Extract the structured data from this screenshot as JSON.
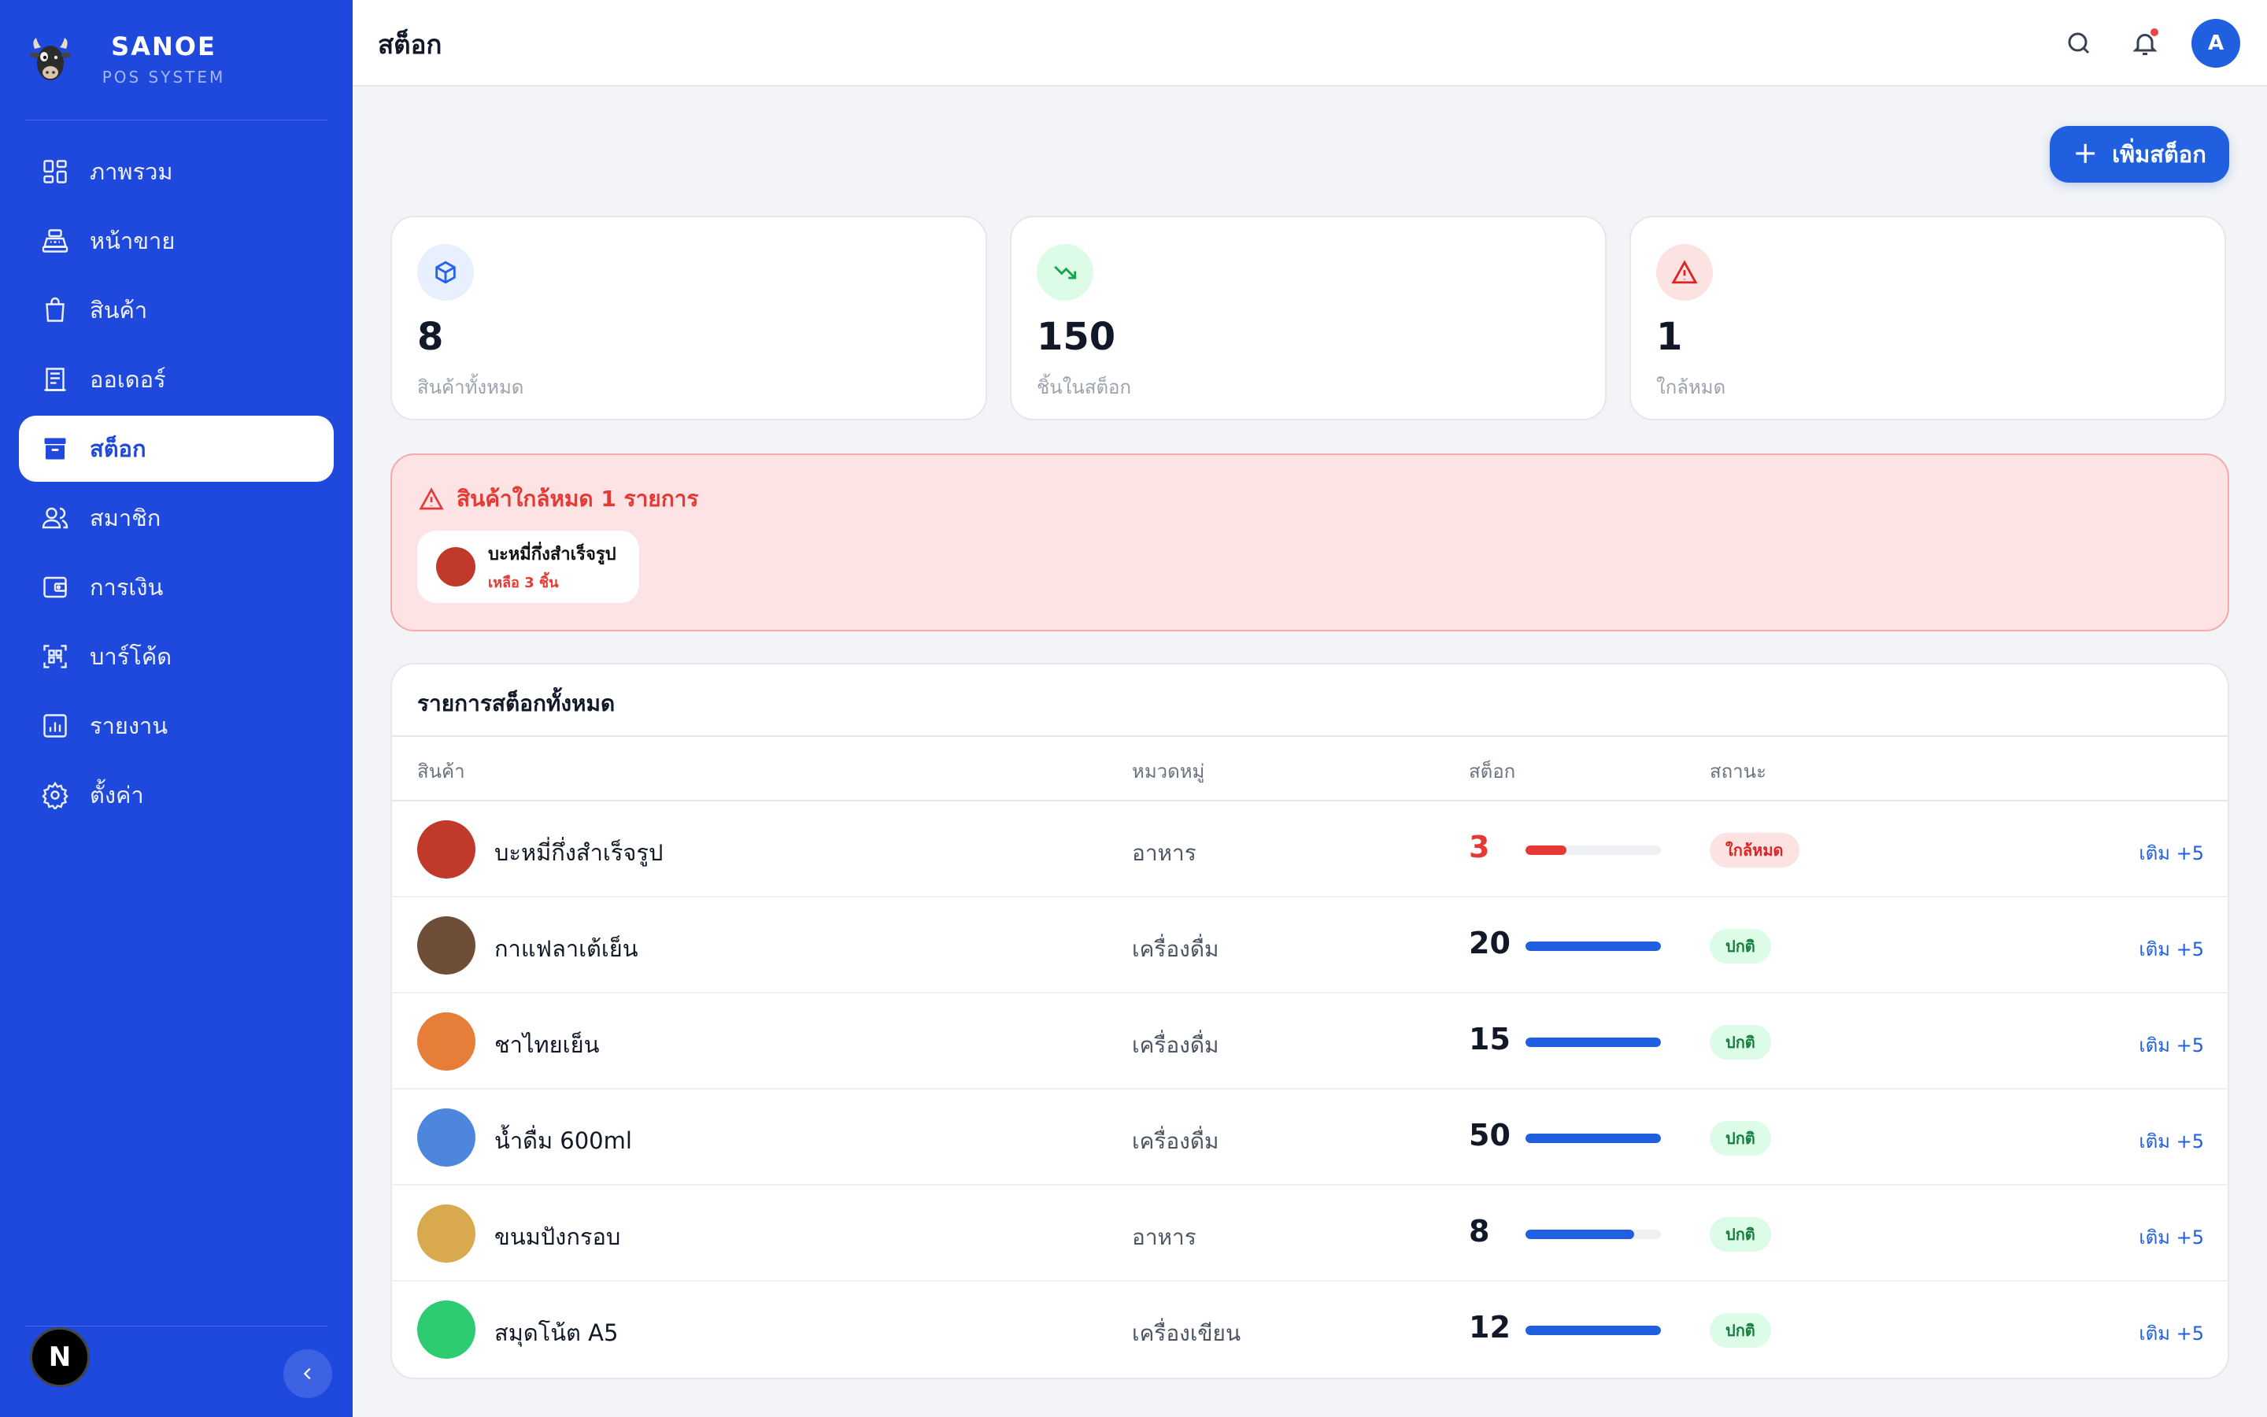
{
  "brand": {
    "name": "SANOE",
    "subtitle": "POS SYSTEM"
  },
  "sidebar": {
    "items": [
      {
        "label": "ภาพรวม",
        "icon": "dashboard-icon",
        "active": false
      },
      {
        "label": "หน้าขาย",
        "icon": "cash-register-icon",
        "active": false
      },
      {
        "label": "สินค้า",
        "icon": "shopping-bag-icon",
        "active": false
      },
      {
        "label": "ออเดอร์",
        "icon": "receipt-icon",
        "active": false
      },
      {
        "label": "สต็อก",
        "icon": "archive-box-icon",
        "active": true
      },
      {
        "label": "สมาชิก",
        "icon": "users-icon",
        "active": false
      },
      {
        "label": "การเงิน",
        "icon": "wallet-icon",
        "active": false
      },
      {
        "label": "บาร์โค้ด",
        "icon": "qr-code-icon",
        "active": false
      },
      {
        "label": "รายงาน",
        "icon": "bar-chart-icon",
        "active": false
      },
      {
        "label": "ตั้งค่า",
        "icon": "gear-icon",
        "active": false
      }
    ],
    "footer_badge": "N"
  },
  "header": {
    "title": "สต็อก",
    "avatar_initial": "A"
  },
  "toolbar": {
    "add_stock_label": "เพิ่มสต็อก"
  },
  "stats": [
    {
      "value": "8",
      "label": "สินค้าทั้งหมด",
      "icon": "package-icon",
      "color": "#2563eb"
    },
    {
      "value": "150",
      "label": "ชิ้นในสต็อก",
      "icon": "trending-down-icon",
      "color": "#16a34a"
    },
    {
      "value": "1",
      "label": "ใกล้หมด",
      "icon": "warning-icon",
      "color": "#dc2626"
    }
  ],
  "alert": {
    "title": "สินค้าใกล้หมด 1 รายการ",
    "item_name": "บะหมี่กึ่งสำเร็จรูป",
    "item_remaining": "เหลือ 3 ชิ้น",
    "item_color": "#c0392b"
  },
  "table": {
    "title": "รายการสต็อกทั้งหมด",
    "columns": [
      "สินค้า",
      "หมวดหมู่",
      "สต็อก",
      "สถานะ"
    ],
    "rows": [
      {
        "name": "บะหมี่กึ่งสำเร็จรูป",
        "category": "อาหาร",
        "qty": "3",
        "level": 0.3,
        "status": "ใกล้หมด",
        "low": true,
        "color": "#c0392b",
        "action": "เติม +5"
      },
      {
        "name": "กาแฟลาเต้เย็น",
        "category": "เครื่องดื่ม",
        "qty": "20",
        "level": 1.0,
        "status": "ปกติ",
        "low": false,
        "color": "#6f4e37",
        "action": "เติม +5"
      },
      {
        "name": "ชาไทยเย็น",
        "category": "เครื่องดื่ม",
        "qty": "15",
        "level": 1.0,
        "status": "ปกติ",
        "low": false,
        "color": "#e67e3a",
        "action": "เติม +5"
      },
      {
        "name": "น้ำดื่ม 600ml",
        "category": "เครื่องดื่ม",
        "qty": "50",
        "level": 1.0,
        "status": "ปกติ",
        "low": false,
        "color": "#4f86dd",
        "action": "เติม +5"
      },
      {
        "name": "ขนมปังกรอบ",
        "category": "อาหาร",
        "qty": "8",
        "level": 0.8,
        "status": "ปกติ",
        "low": false,
        "color": "#d9a94f",
        "action": "เติม +5"
      },
      {
        "name": "สมุดโน้ต A5",
        "category": "เครื่องเขียน",
        "qty": "12",
        "level": 1.0,
        "status": "ปกติ",
        "low": false,
        "color": "#2ecc71",
        "action": "เติม +5"
      }
    ]
  }
}
